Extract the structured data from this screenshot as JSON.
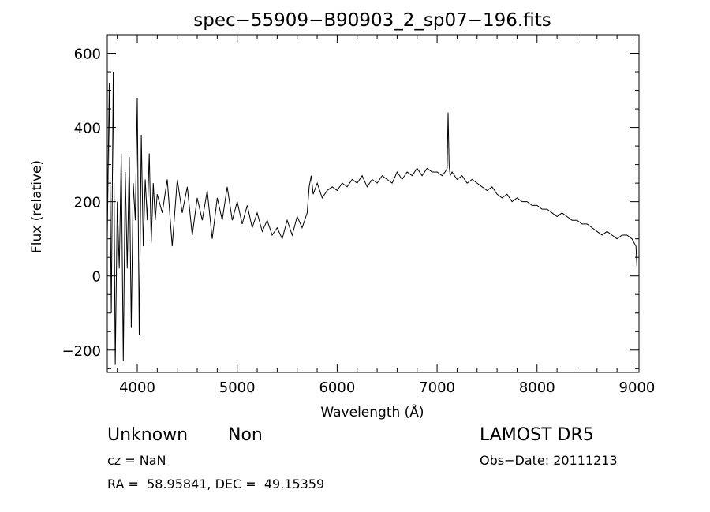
{
  "chart_data": {
    "type": "line",
    "title": "spec−55909−B90903_2_sp07−196.fits",
    "xlabel": "Wavelength (Å)",
    "ylabel": "Flux (relative)",
    "xlim": [
      3700,
      9020
    ],
    "ylim": [
      -260,
      650
    ],
    "xticks": [
      4000,
      5000,
      6000,
      7000,
      8000,
      9000
    ],
    "yticks": [
      -200,
      0,
      200,
      400,
      600
    ],
    "ytick_labels": [
      "−200",
      "0",
      "200",
      "400",
      "600"
    ],
    "grid": false,
    "series": [
      {
        "x": [
          3700,
          3720,
          3740,
          3760,
          3780,
          3800,
          3820,
          3840,
          3860,
          3880,
          3900,
          3920,
          3940,
          3960,
          3980,
          4000,
          4020,
          4040,
          4060,
          4080,
          4100,
          4120,
          4140,
          4160,
          4180,
          4200,
          4250,
          4300,
          4350,
          4400,
          4450,
          4500,
          4550,
          4600,
          4650,
          4700,
          4750,
          4800,
          4850,
          4900,
          4950,
          5000,
          5050,
          5100,
          5150,
          5200,
          5250,
          5300,
          5350,
          5400,
          5450,
          5500,
          5550,
          5600,
          5650,
          5700,
          5720,
          5740,
          5760,
          5800,
          5850,
          5900,
          5950,
          6000,
          6050,
          6100,
          6150,
          6200,
          6250,
          6300,
          6350,
          6400,
          6450,
          6500,
          6550,
          6600,
          6650,
          6700,
          6750,
          6800,
          6850,
          6900,
          6950,
          7000,
          7050,
          7080,
          7100,
          7110,
          7120,
          7130,
          7150,
          7200,
          7250,
          7300,
          7350,
          7400,
          7450,
          7500,
          7550,
          7600,
          7650,
          7700,
          7750,
          7800,
          7850,
          7900,
          7950,
          8000,
          8050,
          8100,
          8150,
          8200,
          8250,
          8300,
          8350,
          8400,
          8450,
          8500,
          8550,
          8600,
          8650,
          8700,
          8750,
          8800,
          8850,
          8900,
          8950,
          8990,
          9000
        ],
        "y": [
          100,
          520,
          -100,
          550,
          -240,
          200,
          20,
          330,
          -230,
          280,
          20,
          320,
          -140,
          250,
          150,
          480,
          -160,
          380,
          80,
          260,
          150,
          330,
          90,
          250,
          150,
          220,
          170,
          260,
          80,
          260,
          170,
          240,
          110,
          210,
          150,
          230,
          100,
          210,
          150,
          240,
          150,
          200,
          140,
          190,
          130,
          170,
          120,
          150,
          110,
          130,
          100,
          150,
          110,
          160,
          130,
          170,
          240,
          270,
          220,
          250,
          210,
          230,
          240,
          230,
          250,
          240,
          260,
          250,
          270,
          240,
          260,
          250,
          270,
          260,
          250,
          280,
          260,
          280,
          270,
          290,
          270,
          290,
          280,
          280,
          270,
          280,
          290,
          440,
          300,
          270,
          280,
          260,
          270,
          250,
          260,
          250,
          240,
          230,
          240,
          220,
          210,
          220,
          200,
          210,
          200,
          200,
          190,
          190,
          180,
          180,
          170,
          160,
          170,
          160,
          150,
          150,
          140,
          140,
          130,
          120,
          110,
          120,
          110,
          100,
          110,
          110,
          100,
          80,
          20
        ]
      }
    ]
  },
  "info": {
    "class": "Unknown",
    "subclass": "Non",
    "cz": "cz = NaN",
    "radec": "RA =  58.95841, DEC =  49.15359",
    "survey": "LAMOST DR5",
    "obsdate": "Obs−Date: 20111213"
  }
}
